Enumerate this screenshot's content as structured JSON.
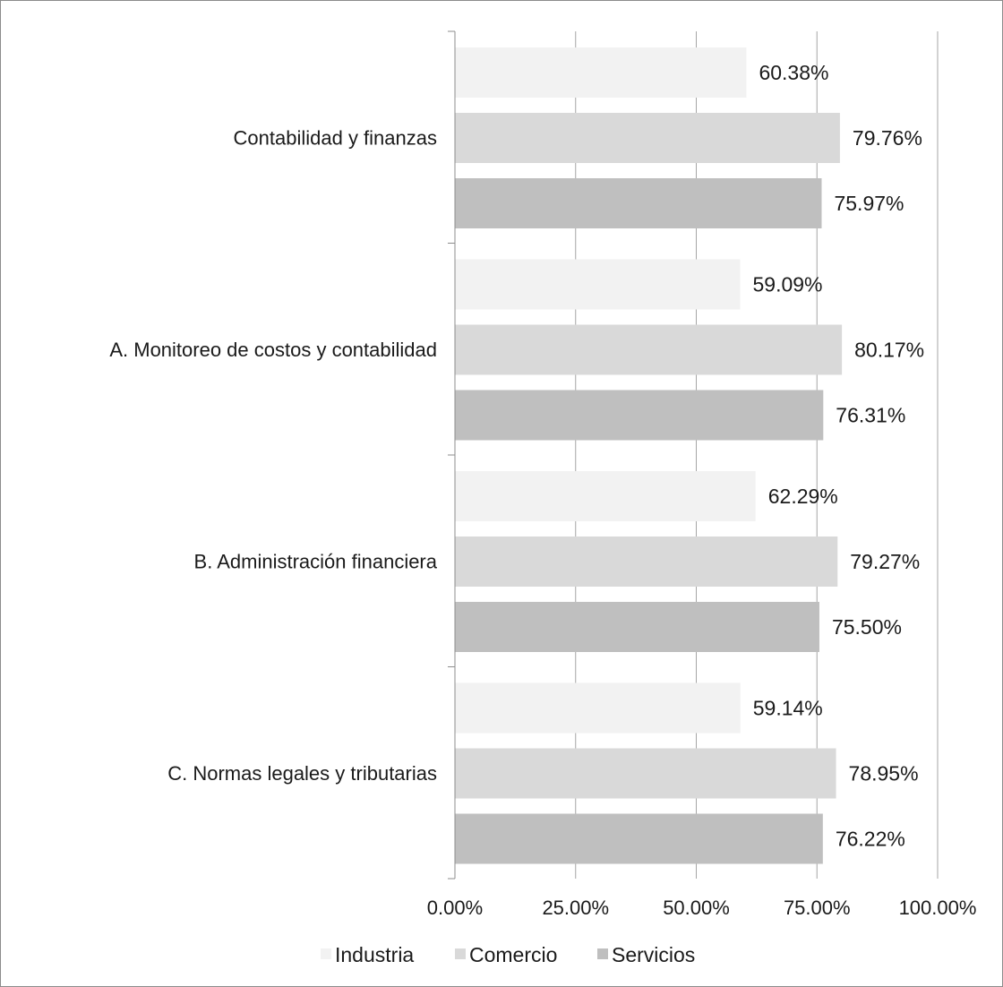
{
  "chart_data": {
    "type": "bar",
    "orientation": "horizontal",
    "categories": [
      "Contabilidad y finanzas",
      "A. Monitoreo de costos y contabilidad",
      "B. Administración financiera",
      "C. Normas legales y tributarias"
    ],
    "series": [
      {
        "name": "Industria",
        "color": "#f2f2f2",
        "values": [
          60.38,
          59.09,
          62.29,
          59.14
        ],
        "labels": [
          "60.38%",
          "59.09%",
          "62.29%",
          "59.14%"
        ]
      },
      {
        "name": "Comercio",
        "color": "#d9d9d9",
        "values": [
          79.76,
          80.17,
          79.27,
          78.95
        ],
        "labels": [
          "79.76%",
          "80.17%",
          "79.27%",
          "78.95%"
        ]
      },
      {
        "name": "Servicios",
        "color": "#bfbfbf",
        "values": [
          75.97,
          76.31,
          75.5,
          76.22
        ],
        "labels": [
          "75.97%",
          "76.31%",
          "75.50%",
          "76.22%"
        ]
      }
    ],
    "xlim": [
      0,
      100
    ],
    "x_ticks": [
      0,
      25,
      50,
      75,
      100
    ],
    "x_tick_labels": [
      "0.00%",
      "25.00%",
      "50.00%",
      "75.00%",
      "100.00%"
    ],
    "grid": "vertical",
    "legend": "bottom",
    "title": "",
    "xlabel": "",
    "ylabel": ""
  }
}
